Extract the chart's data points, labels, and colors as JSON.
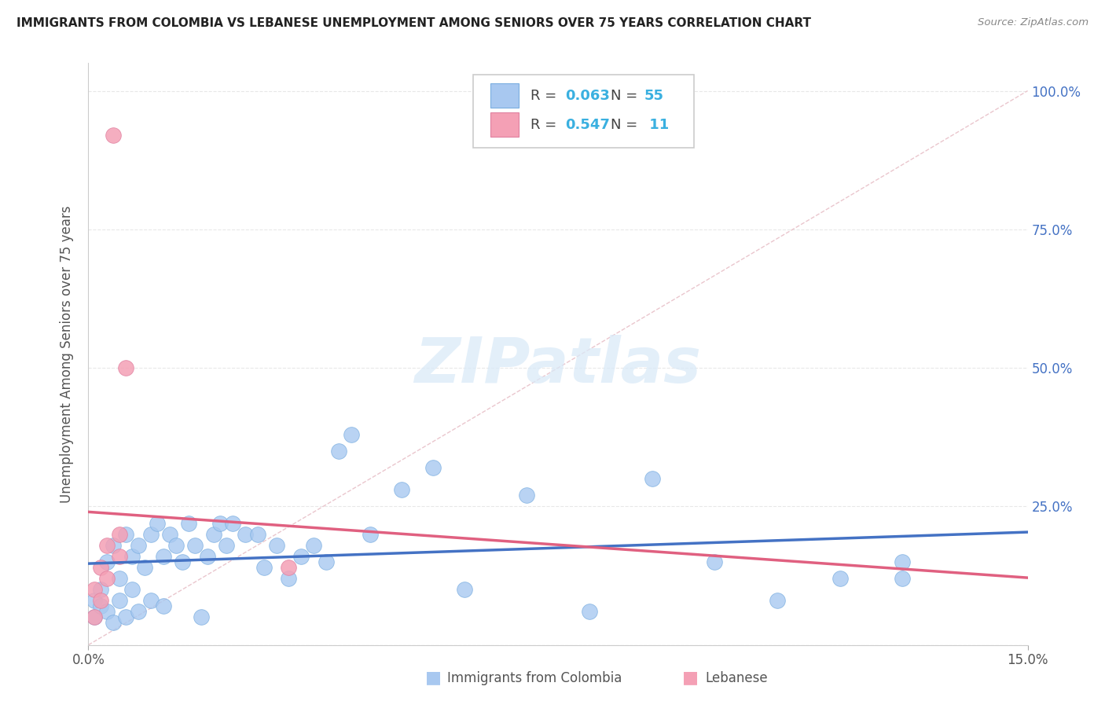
{
  "title": "IMMIGRANTS FROM COLOMBIA VS LEBANESE UNEMPLOYMENT AMONG SENIORS OVER 75 YEARS CORRELATION CHART",
  "source": "Source: ZipAtlas.com",
  "ylabel": "Unemployment Among Seniors over 75 years",
  "xlim": [
    0.0,
    0.15
  ],
  "ylim": [
    0.0,
    1.05
  ],
  "series1_color": "#a8c8f0",
  "series2_color": "#f4a0b5",
  "series1_edge": "#7aaee0",
  "series2_edge": "#e080a0",
  "trendline1_color": "#4472c4",
  "trendline2_color": "#e06080",
  "reference_line_color": "#e8c0c8",
  "watermark": "ZIPatlas",
  "watermark_color": "#daeaf8",
  "background_color": "#ffffff",
  "grid_color": "#e8e8e8",
  "legend_r1": "0.063",
  "legend_n1": "55",
  "legend_r2": "0.547",
  "legend_n2": "11",
  "accent_color": "#3ab0e0",
  "right_tick_color": "#4472c4",
  "colombia_x": [
    0.001,
    0.001,
    0.002,
    0.002,
    0.003,
    0.003,
    0.004,
    0.004,
    0.005,
    0.005,
    0.006,
    0.006,
    0.007,
    0.007,
    0.008,
    0.008,
    0.009,
    0.01,
    0.01,
    0.011,
    0.012,
    0.012,
    0.013,
    0.014,
    0.015,
    0.016,
    0.017,
    0.018,
    0.019,
    0.02,
    0.021,
    0.022,
    0.023,
    0.025,
    0.027,
    0.028,
    0.03,
    0.032,
    0.034,
    0.036,
    0.038,
    0.04,
    0.042,
    0.045,
    0.05,
    0.055,
    0.06,
    0.07,
    0.08,
    0.09,
    0.1,
    0.11,
    0.12,
    0.13,
    0.13
  ],
  "colombia_y": [
    0.08,
    0.05,
    0.1,
    0.07,
    0.15,
    0.06,
    0.18,
    0.04,
    0.12,
    0.08,
    0.2,
    0.05,
    0.16,
    0.1,
    0.18,
    0.06,
    0.14,
    0.2,
    0.08,
    0.22,
    0.16,
    0.07,
    0.2,
    0.18,
    0.15,
    0.22,
    0.18,
    0.05,
    0.16,
    0.2,
    0.22,
    0.18,
    0.22,
    0.2,
    0.2,
    0.14,
    0.18,
    0.12,
    0.16,
    0.18,
    0.15,
    0.35,
    0.38,
    0.2,
    0.28,
    0.32,
    0.1,
    0.27,
    0.06,
    0.3,
    0.15,
    0.08,
    0.12,
    0.15,
    0.12
  ],
  "lebanese_x": [
    0.001,
    0.001,
    0.002,
    0.002,
    0.003,
    0.003,
    0.004,
    0.005,
    0.005,
    0.006,
    0.032
  ],
  "lebanese_y": [
    0.05,
    0.1,
    0.14,
    0.08,
    0.18,
    0.12,
    0.92,
    0.16,
    0.2,
    0.5,
    0.14
  ]
}
